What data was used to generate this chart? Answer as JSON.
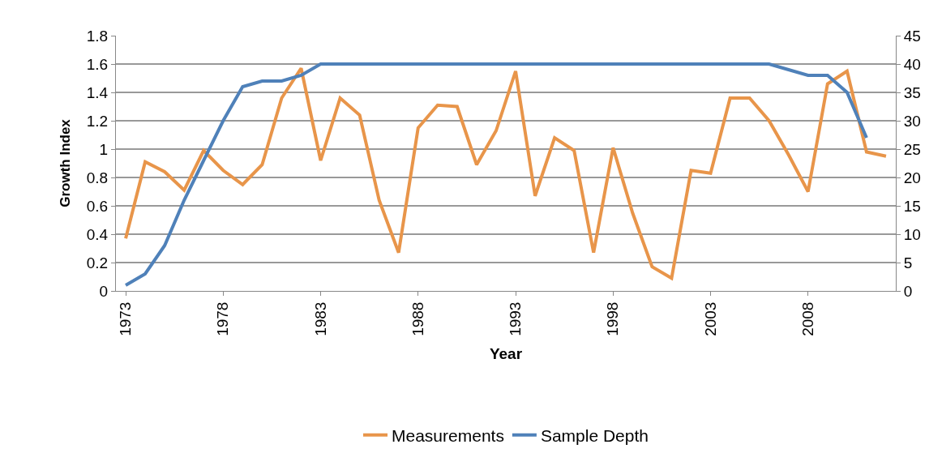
{
  "chart_data": {
    "type": "line",
    "xlabel": "Year",
    "ylabel": "Growth Index",
    "x": [
      1973,
      1974,
      1975,
      1976,
      1977,
      1978,
      1979,
      1980,
      1981,
      1982,
      1983,
      1984,
      1985,
      1986,
      1987,
      1988,
      1989,
      1990,
      1991,
      1992,
      1993,
      1994,
      1995,
      1996,
      1997,
      1998,
      1999,
      2000,
      2001,
      2002,
      2003,
      2004,
      2005,
      2006,
      2007,
      2008,
      2009,
      2010,
      2011,
      2012
    ],
    "series": [
      {
        "name": "Measurements",
        "color": "#e8954a",
        "values": [
          0.37,
          0.91,
          0.84,
          0.71,
          0.99,
          0.85,
          0.75,
          0.89,
          1.36,
          1.57,
          0.92,
          1.36,
          1.24,
          0.64,
          0.27,
          1.15,
          1.31,
          1.3,
          0.89,
          1.13,
          1.55,
          0.67,
          1.08,
          0.99,
          0.27,
          1.01,
          0.55,
          0.17,
          0.09,
          0.85,
          0.83,
          1.36,
          1.36,
          1.2,
          0.96,
          0.7,
          1.46,
          1.55,
          0.98,
          0.95
        ]
      },
      {
        "name": "Sample Depth",
        "color": "#4f81b9",
        "axis": "y2",
        "values": [
          1,
          3,
          8,
          16,
          23,
          30,
          36,
          37,
          37,
          38,
          40,
          40,
          40,
          40,
          40,
          40,
          40,
          40,
          40,
          40,
          40,
          40,
          40,
          40,
          40,
          40,
          40,
          40,
          40,
          40,
          40,
          40,
          40,
          40,
          39,
          38,
          38,
          35,
          27,
          null
        ]
      }
    ],
    "xlim": [
      1972.5,
      2012.5
    ],
    "xticks": [
      1973,
      1978,
      1983,
      1988,
      1993,
      1998,
      2003,
      2008
    ],
    "ylim": [
      0,
      1.8
    ],
    "yticks": [
      0,
      0.2,
      0.4,
      0.6,
      0.8,
      1,
      1.2,
      1.4,
      1.6,
      1.8
    ],
    "y2lim": [
      0,
      45
    ],
    "y2ticks": [
      0,
      5,
      10,
      15,
      20,
      25,
      30,
      35,
      40,
      45
    ],
    "grid": "y",
    "legend": "bottom",
    "marker": "none",
    "line_style": "solid"
  }
}
